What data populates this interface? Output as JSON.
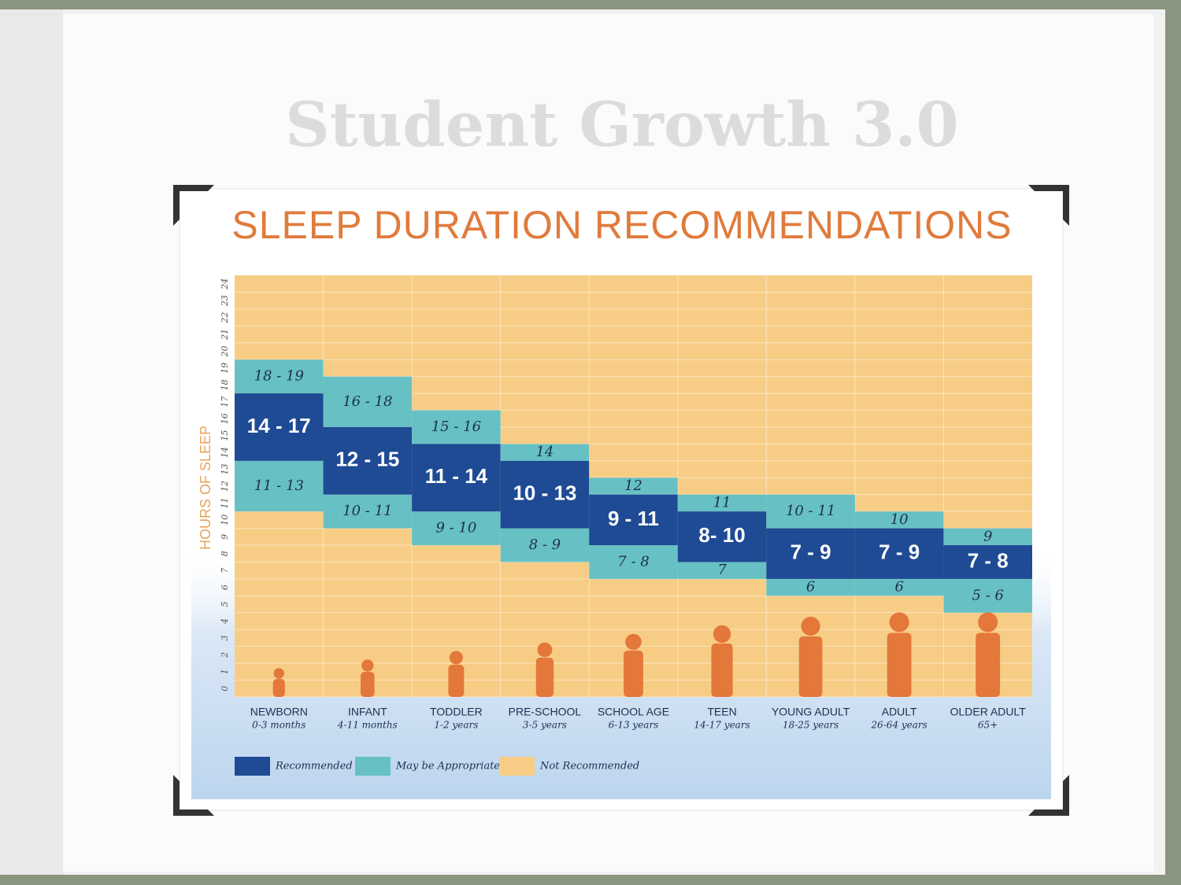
{
  "slide_title": "Student Growth 3.0",
  "chart_data": {
    "type": "range",
    "title": "SLEEP DURATION RECOMMENDATIONS",
    "y_label": "HOURS OF SLEEP",
    "categories": [
      "NEWBORN",
      "INFANT",
      "TODDLER",
      "PRE-SCHOOL",
      "SCHOOL AGE",
      "TEEN",
      "YOUNG ADULT",
      "ADULT",
      "OLDER ADULT"
    ],
    "category_subtitles": [
      "0-3 months",
      "4-11 months",
      "1-2 years",
      "3-5 years",
      "6-13 years",
      "14-17 years",
      "18-25 years",
      "26-64 years",
      "65+"
    ],
    "ylim": [
      0,
      24
    ],
    "yticks": [
      0,
      1,
      2,
      3,
      4,
      5,
      6,
      7,
      8,
      9,
      10,
      11,
      12,
      13,
      14,
      15,
      16,
      17,
      18,
      19,
      20,
      21,
      22,
      23,
      24
    ],
    "grid": true,
    "series": [
      {
        "name": "Recommended",
        "color": "#1f4a94",
        "low": [
          14,
          12,
          11,
          10,
          9,
          8,
          7,
          7,
          7
        ],
        "high": [
          17,
          15,
          14,
          13,
          11,
          10,
          9,
          9,
          8
        ],
        "value_labels": [
          "14 - 17",
          "12 - 15",
          "11 - 14",
          "10 - 13",
          "9 - 11",
          "8- 10",
          "7 - 9",
          "7 - 9",
          "7 - 8"
        ]
      },
      {
        "name": "May be Appropriate",
        "color": "#67c1c4",
        "upper": {
          "low": [
            18,
            16,
            15,
            14,
            12,
            11,
            10,
            10,
            9
          ],
          "high": [
            19,
            18,
            16,
            14,
            12,
            11,
            11,
            10,
            9
          ],
          "value_labels": [
            "18 - 19",
            "16 - 18",
            "15 - 16",
            "14",
            "12",
            "11",
            "10 - 11",
            "10",
            "9"
          ]
        },
        "lower": {
          "low": [
            11,
            10,
            9,
            8,
            7,
            7,
            6,
            6,
            5
          ],
          "high": [
            13,
            11,
            10,
            9,
            8,
            7,
            6,
            6,
            6
          ],
          "value_labels": [
            "11 - 13",
            "10 - 11",
            "9 - 10",
            "8 - 9",
            "7 - 8",
            "7",
            "6",
            "6",
            "5 - 6"
          ]
        }
      },
      {
        "name": "Not Recommended",
        "color": "#f7cd86"
      }
    ]
  }
}
